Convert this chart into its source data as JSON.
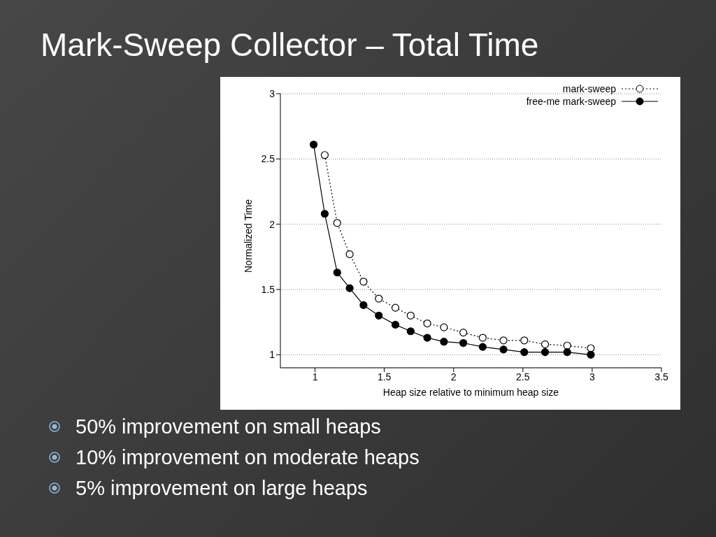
{
  "chart_data": {
    "type": "line",
    "title": "Mark-Sweep Collector – Total Time",
    "xlabel": "Heap size relative to minimum heap size",
    "ylabel": "Normalized Time",
    "series": [
      {
        "name": "mark-sweep",
        "color": "#000000",
        "line_style": "dotted",
        "marker": "circle",
        "x": [
          1.07,
          1.16,
          1.25,
          1.35,
          1.46,
          1.58,
          1.69,
          1.81,
          1.93,
          2.07,
          2.21,
          2.36,
          2.51,
          2.66,
          2.82,
          2.99
        ],
        "values": [
          2.53,
          2.01,
          1.77,
          1.56,
          1.43,
          1.36,
          1.3,
          1.24,
          1.21,
          1.17,
          1.13,
          1.11,
          1.11,
          1.08,
          1.07,
          1.05
        ]
      },
      {
        "name": "free-me mark-sweep",
        "color": "#000000",
        "line_style": "solid",
        "marker": "circle",
        "x": [
          0.99,
          1.07,
          1.16,
          1.25,
          1.35,
          1.46,
          1.58,
          1.69,
          1.81,
          1.93,
          2.07,
          2.21,
          2.36,
          2.51,
          2.66,
          2.82,
          2.99
        ],
        "values": [
          2.61,
          2.08,
          1.63,
          1.51,
          1.38,
          1.3,
          1.23,
          1.18,
          1.13,
          1.1,
          1.09,
          1.06,
          1.04,
          1.02,
          1.02,
          1.02,
          1.0
        ]
      }
    ],
    "xlim": [
      0.75,
      3.5
    ],
    "xticks": [
      1,
      1.5,
      2,
      2.5,
      3,
      3.5
    ],
    "ylim": [
      0.9,
      3
    ],
    "yticks": [
      1,
      1.5,
      2,
      2.5,
      3
    ],
    "grid": "y",
    "legend": "top right",
    "annotations": [
      "50% improvement on small heaps",
      "10% improvement on moderate heaps",
      "5% improvement on large heaps"
    ]
  }
}
